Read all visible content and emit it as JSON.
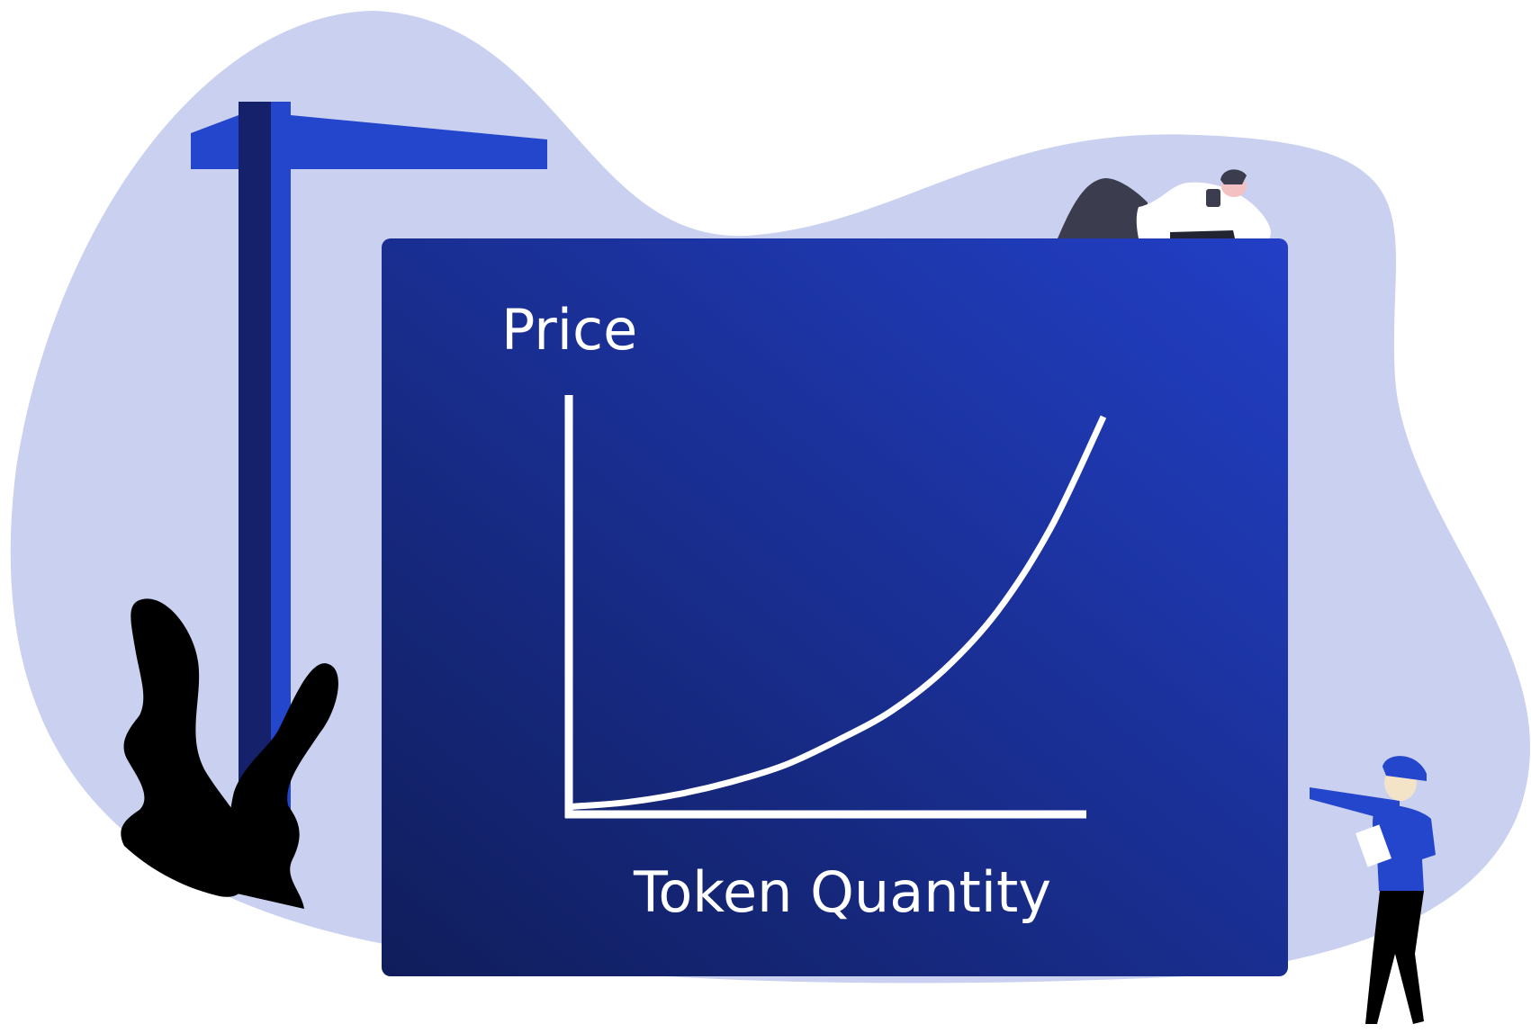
{
  "colors": {
    "blob": "#c9d0f0",
    "panel_light": "#223fc6",
    "panel_dark": "#101d5b",
    "post_light": "#2446cc",
    "post_dark": "#15226b",
    "curve": "#ffffff",
    "plant": "#000000"
  },
  "icons": [
    "signpost-icon",
    "plant-icon",
    "reclining-person-icon",
    "pointing-worker-icon"
  ],
  "chart_data": {
    "type": "line",
    "xlabel": "Token Quantity",
    "ylabel": "Price",
    "title": "",
    "shape": "exponential",
    "grid": false,
    "ticks": "none",
    "xlim": [
      0,
      1
    ],
    "ylim": [
      0,
      1
    ],
    "series": [
      {
        "x": [
          0,
          0.1,
          0.2,
          0.3,
          0.4,
          0.5,
          0.6,
          0.7,
          0.8,
          0.9,
          1.0
        ],
        "y": [
          0.01,
          0.02,
          0.04,
          0.07,
          0.11,
          0.17,
          0.24,
          0.34,
          0.48,
          0.68,
          0.95
        ]
      }
    ]
  }
}
